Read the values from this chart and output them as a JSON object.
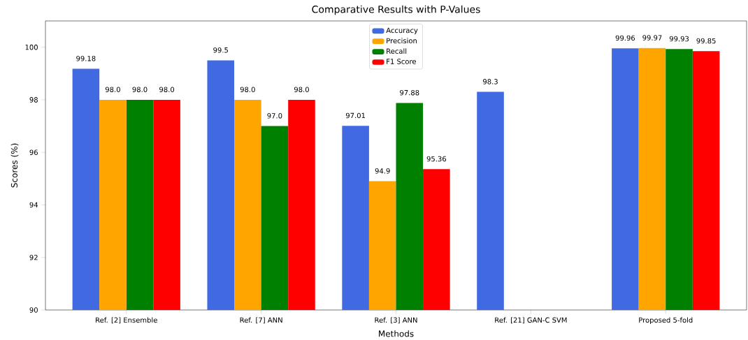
{
  "chart_data": {
    "type": "bar",
    "title": "Comparative Results with P-Values",
    "xlabel": "Methods",
    "ylabel": "Scores (%)",
    "categories": [
      "Ref. [2] Ensemble",
      "Ref. [7] ANN",
      "Ref. [3] ANN",
      "Ref. [21] GAN-C SVM",
      "Proposed 5-fold"
    ],
    "series": [
      {
        "name": "Accuracy",
        "color": "#4169e1",
        "values": [
          99.18,
          99.5,
          97.01,
          98.3,
          99.96
        ],
        "value_labels": [
          "99.18",
          "99.5",
          "97.01",
          "98.3",
          "99.96"
        ]
      },
      {
        "name": "Precision",
        "color": "#ffa500",
        "values": [
          98.0,
          98.0,
          94.9,
          null,
          99.97
        ],
        "value_labels": [
          "98.0",
          "98.0",
          "94.9",
          null,
          "99.97"
        ]
      },
      {
        "name": "Recall",
        "color": "#008000",
        "values": [
          98.0,
          97.0,
          97.88,
          null,
          99.93
        ],
        "value_labels": [
          "98.0",
          "97.0",
          "97.88",
          null,
          "99.93"
        ]
      },
      {
        "name": "F1 Score",
        "color": "#ff0000",
        "values": [
          98.0,
          98.0,
          95.36,
          null,
          99.85
        ],
        "value_labels": [
          "98.0",
          "98.0",
          "95.36",
          null,
          "99.85"
        ]
      }
    ],
    "ylim": [
      90,
      101
    ],
    "yticks": [
      90,
      92,
      94,
      96,
      98,
      100
    ],
    "legend": "top",
    "grid": false
  }
}
